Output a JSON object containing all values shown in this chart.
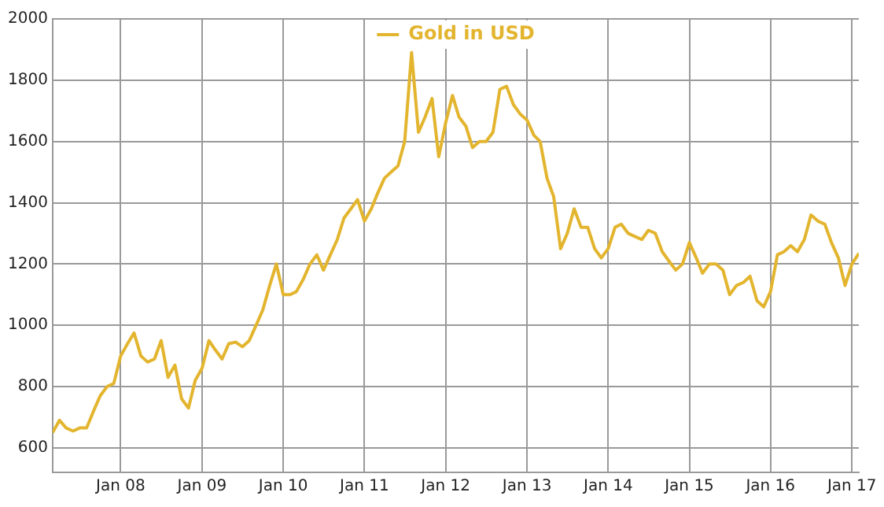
{
  "chart_data": {
    "type": "line",
    "xlim": [
      "2007-03",
      "2017-02"
    ],
    "ylim": [
      520,
      2000
    ],
    "yticks": [
      600,
      800,
      1000,
      1200,
      1400,
      1600,
      1800,
      2000
    ],
    "xticks": [
      {
        "value": "2008-01",
        "label": "Jan 08"
      },
      {
        "value": "2009-01",
        "label": "Jan 09"
      },
      {
        "value": "2010-01",
        "label": "Jan 10"
      },
      {
        "value": "2011-01",
        "label": "Jan 11"
      },
      {
        "value": "2012-01",
        "label": "Jan 12"
      },
      {
        "value": "2013-01",
        "label": "Jan 13"
      },
      {
        "value": "2014-01",
        "label": "Jan 14"
      },
      {
        "value": "2015-01",
        "label": "Jan 15"
      },
      {
        "value": "2016-01",
        "label": "Jan 16"
      },
      {
        "value": "2017-01",
        "label": "Jan 17"
      }
    ],
    "x": [
      "2007-03",
      "2007-04",
      "2007-05",
      "2007-06",
      "2007-07",
      "2007-08",
      "2007-09",
      "2007-10",
      "2007-11",
      "2007-12",
      "2008-01",
      "2008-02",
      "2008-03",
      "2008-04",
      "2008-05",
      "2008-06",
      "2008-07",
      "2008-08",
      "2008-09",
      "2008-10",
      "2008-11",
      "2008-12",
      "2009-01",
      "2009-02",
      "2009-03",
      "2009-04",
      "2009-05",
      "2009-06",
      "2009-07",
      "2009-08",
      "2009-09",
      "2009-10",
      "2009-11",
      "2009-12",
      "2010-01",
      "2010-02",
      "2010-03",
      "2010-04",
      "2010-05",
      "2010-06",
      "2010-07",
      "2010-08",
      "2010-09",
      "2010-10",
      "2010-11",
      "2010-12",
      "2011-01",
      "2011-02",
      "2011-03",
      "2011-04",
      "2011-05",
      "2011-06",
      "2011-07",
      "2011-08",
      "2011-09",
      "2011-10",
      "2011-11",
      "2011-12",
      "2012-01",
      "2012-02",
      "2012-03",
      "2012-04",
      "2012-05",
      "2012-06",
      "2012-07",
      "2012-08",
      "2012-09",
      "2012-10",
      "2012-11",
      "2012-12",
      "2013-01",
      "2013-02",
      "2013-03",
      "2013-04",
      "2013-05",
      "2013-06",
      "2013-07",
      "2013-08",
      "2013-09",
      "2013-10",
      "2013-11",
      "2013-12",
      "2014-01",
      "2014-02",
      "2014-03",
      "2014-04",
      "2014-05",
      "2014-06",
      "2014-07",
      "2014-08",
      "2014-09",
      "2014-10",
      "2014-11",
      "2014-12",
      "2015-01",
      "2015-02",
      "2015-03",
      "2015-04",
      "2015-05",
      "2015-06",
      "2015-07",
      "2015-08",
      "2015-09",
      "2015-10",
      "2015-11",
      "2015-12",
      "2016-01",
      "2016-02",
      "2016-03",
      "2016-04",
      "2016-05",
      "2016-06",
      "2016-07",
      "2016-08",
      "2016-09",
      "2016-10",
      "2016-11",
      "2016-12",
      "2017-01",
      "2017-02"
    ],
    "series": [
      {
        "name": "Gold in USD",
        "color": "#e3b52f",
        "values": [
          650,
          690,
          665,
          655,
          665,
          665,
          720,
          770,
          800,
          810,
          900,
          940,
          975,
          900,
          880,
          890,
          950,
          830,
          870,
          760,
          730,
          820,
          860,
          950,
          920,
          890,
          940,
          945,
          930,
          950,
          1000,
          1050,
          1130,
          1200,
          1100,
          1100,
          1110,
          1150,
          1200,
          1230,
          1180,
          1230,
          1280,
          1350,
          1380,
          1410,
          1340,
          1380,
          1430,
          1480,
          1500,
          1520,
          1600,
          1890,
          1630,
          1680,
          1740,
          1550,
          1660,
          1750,
          1680,
          1650,
          1580,
          1600,
          1600,
          1630,
          1770,
          1780,
          1720,
          1690,
          1670,
          1620,
          1600,
          1480,
          1420,
          1250,
          1300,
          1380,
          1320,
          1320,
          1250,
          1220,
          1250,
          1320,
          1330,
          1300,
          1290,
          1280,
          1310,
          1300,
          1240,
          1210,
          1180,
          1200,
          1270,
          1220,
          1170,
          1200,
          1200,
          1180,
          1100,
          1130,
          1140,
          1160,
          1080,
          1060,
          1110,
          1230,
          1240,
          1260,
          1240,
          1280,
          1360,
          1340,
          1330,
          1270,
          1220,
          1130,
          1200,
          1235
        ]
      }
    ],
    "grid": true,
    "legend": "top",
    "marker": "none",
    "line_style": "solid"
  }
}
